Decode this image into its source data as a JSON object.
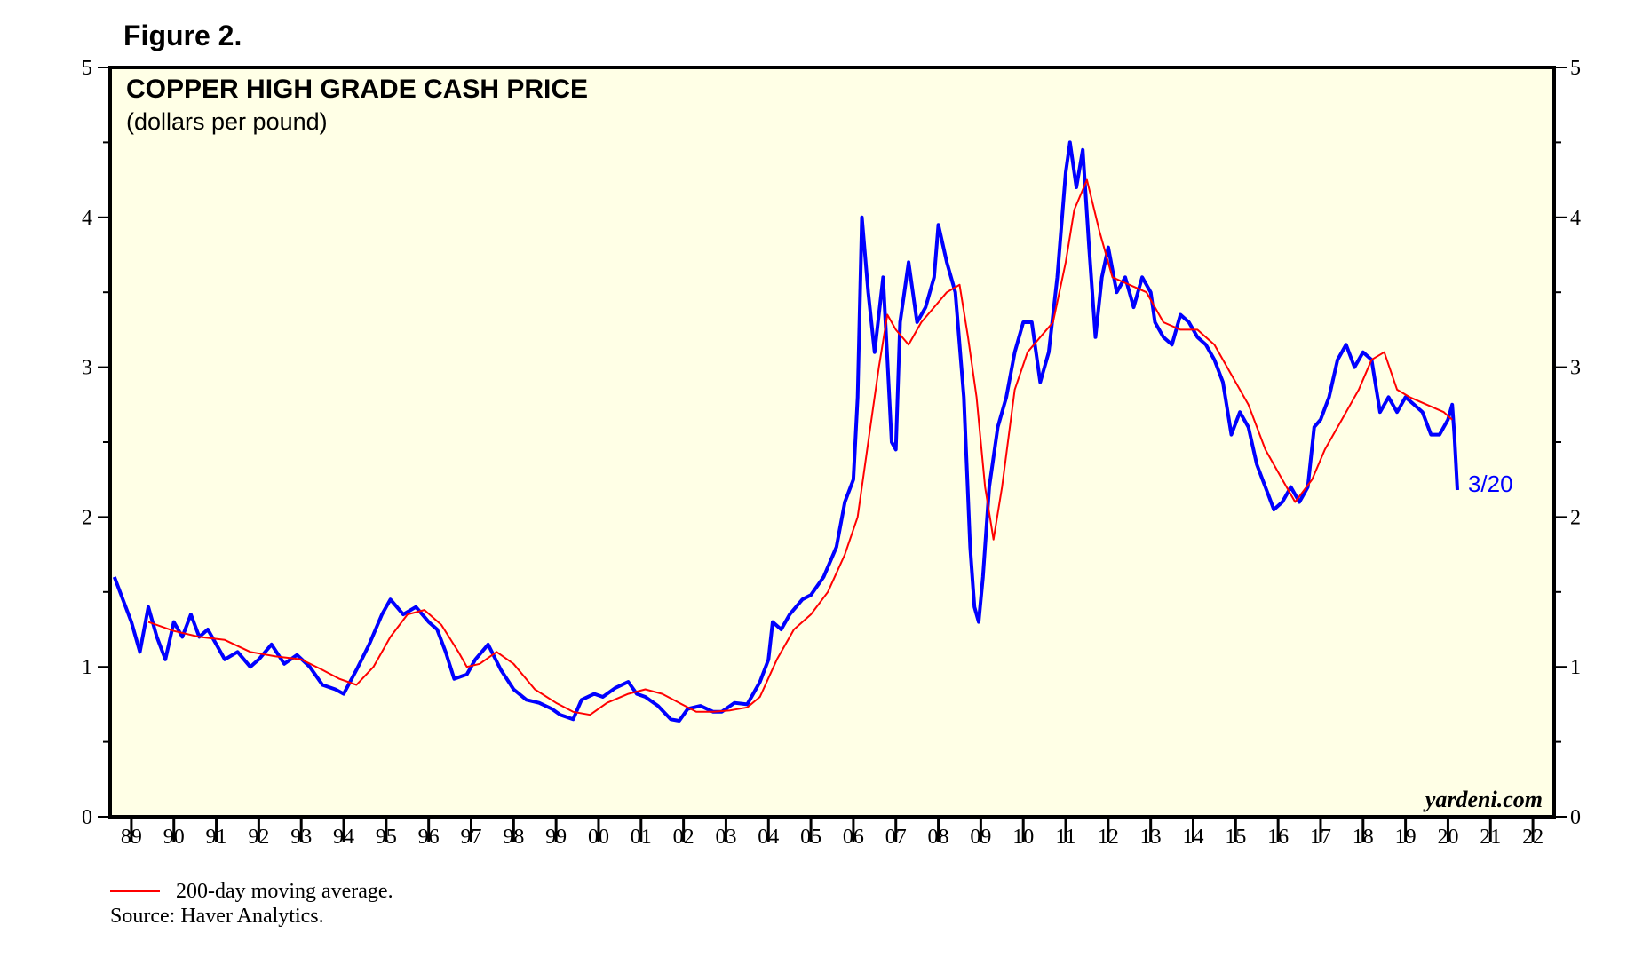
{
  "figure_label": "Figure 2.",
  "footer": {
    "legend_ma": "200-day moving average.",
    "source": "Source: Haver Analytics."
  },
  "chart_data": {
    "type": "line",
    "title": "COPPER HIGH GRADE CASH PRICE",
    "subtitle": "(dollars per pound)",
    "watermark": "yardeni.com",
    "end_annotation": "3/20",
    "ylim": [
      0,
      5
    ],
    "yticks": [
      0,
      1,
      2,
      3,
      4,
      5
    ],
    "xlim": [
      1988.5,
      2022.5
    ],
    "xtick_labels": [
      "89",
      "90",
      "91",
      "92",
      "93",
      "94",
      "95",
      "96",
      "97",
      "98",
      "99",
      "00",
      "01",
      "02",
      "03",
      "04",
      "05",
      "06",
      "07",
      "08",
      "09",
      "10",
      "11",
      "12",
      "13",
      "14",
      "15",
      "16",
      "17",
      "18",
      "19",
      "20",
      "21",
      "22"
    ],
    "grid": false,
    "background": "#ffffe6",
    "series": [
      {
        "name": "",
        "color": "#0000ff",
        "x": [
          1988.6,
          1988.8,
          1989.0,
          1989.2,
          1989.4,
          1989.6,
          1989.8,
          1990.0,
          1990.2,
          1990.4,
          1990.6,
          1990.8,
          1991.0,
          1991.2,
          1991.5,
          1991.8,
          1992.0,
          1992.3,
          1992.6,
          1992.9,
          1993.2,
          1993.5,
          1993.8,
          1994.0,
          1994.3,
          1994.6,
          1994.9,
          1995.1,
          1995.4,
          1995.7,
          1996.0,
          1996.2,
          1996.4,
          1996.6,
          1996.9,
          1997.1,
          1997.4,
          1997.7,
          1998.0,
          1998.3,
          1998.6,
          1998.9,
          1999.1,
          1999.4,
          1999.6,
          1999.9,
          2000.1,
          2000.4,
          2000.7,
          2000.9,
          2001.1,
          2001.4,
          2001.7,
          2001.9,
          2002.1,
          2002.4,
          2002.7,
          2002.9,
          2003.2,
          2003.5,
          2003.8,
          2004.0,
          2004.1,
          2004.3,
          2004.5,
          2004.8,
          2005.0,
          2005.3,
          2005.6,
          2005.8,
          2006.0,
          2006.1,
          2006.2,
          2006.35,
          2006.5,
          2006.7,
          2006.9,
          2007.0,
          2007.1,
          2007.3,
          2007.5,
          2007.7,
          2007.9,
          2008.0,
          2008.2,
          2008.4,
          2008.6,
          2008.75,
          2008.85,
          2008.95,
          2009.05,
          2009.2,
          2009.4,
          2009.6,
          2009.8,
          2010.0,
          2010.2,
          2010.4,
          2010.6,
          2010.8,
          2011.0,
          2011.1,
          2011.25,
          2011.4,
          2011.55,
          2011.7,
          2011.85,
          2012.0,
          2012.2,
          2012.4,
          2012.6,
          2012.8,
          2013.0,
          2013.1,
          2013.3,
          2013.5,
          2013.7,
          2013.9,
          2014.1,
          2014.3,
          2014.5,
          2014.7,
          2014.9,
          2015.1,
          2015.3,
          2015.5,
          2015.7,
          2015.9,
          2016.1,
          2016.3,
          2016.5,
          2016.7,
          2016.85,
          2017.0,
          2017.2,
          2017.4,
          2017.6,
          2017.8,
          2018.0,
          2018.2,
          2018.4,
          2018.6,
          2018.8,
          2019.0,
          2019.2,
          2019.4,
          2019.6,
          2019.8,
          2020.0,
          2020.1,
          2020.15,
          2020.22
        ],
        "y": [
          1.6,
          1.45,
          1.3,
          1.1,
          1.4,
          1.2,
          1.05,
          1.3,
          1.2,
          1.35,
          1.2,
          1.25,
          1.15,
          1.05,
          1.1,
          1.0,
          1.05,
          1.15,
          1.02,
          1.08,
          1.0,
          0.88,
          0.85,
          0.82,
          0.98,
          1.15,
          1.35,
          1.45,
          1.35,
          1.4,
          1.3,
          1.25,
          1.1,
          0.92,
          0.95,
          1.05,
          1.15,
          0.98,
          0.85,
          0.78,
          0.76,
          0.72,
          0.68,
          0.65,
          0.78,
          0.82,
          0.8,
          0.86,
          0.9,
          0.82,
          0.8,
          0.74,
          0.65,
          0.64,
          0.72,
          0.74,
          0.7,
          0.7,
          0.76,
          0.75,
          0.9,
          1.05,
          1.3,
          1.25,
          1.35,
          1.45,
          1.48,
          1.6,
          1.8,
          2.1,
          2.25,
          2.8,
          4.0,
          3.5,
          3.1,
          3.6,
          2.5,
          2.45,
          3.3,
          3.7,
          3.3,
          3.4,
          3.6,
          3.95,
          3.7,
          3.5,
          2.8,
          1.8,
          1.4,
          1.3,
          1.6,
          2.2,
          2.6,
          2.8,
          3.1,
          3.3,
          3.3,
          2.9,
          3.1,
          3.6,
          4.3,
          4.5,
          4.2,
          4.45,
          3.8,
          3.2,
          3.6,
          3.8,
          3.5,
          3.6,
          3.4,
          3.6,
          3.5,
          3.3,
          3.2,
          3.15,
          3.35,
          3.3,
          3.2,
          3.15,
          3.05,
          2.9,
          2.55,
          2.7,
          2.6,
          2.35,
          2.2,
          2.05,
          2.1,
          2.2,
          2.1,
          2.2,
          2.6,
          2.65,
          2.8,
          3.05,
          3.15,
          3.0,
          3.1,
          3.05,
          2.7,
          2.8,
          2.7,
          2.8,
          2.75,
          2.7,
          2.55,
          2.55,
          2.65,
          2.75,
          2.55,
          2.18
        ]
      },
      {
        "name": "200-day moving average.",
        "color": "#ff0000",
        "x": [
          1989.4,
          1990.0,
          1990.6,
          1991.2,
          1991.8,
          1992.4,
          1993.0,
          1993.5,
          1993.9,
          1994.3,
          1994.7,
          1995.1,
          1995.5,
          1995.9,
          1996.3,
          1996.7,
          1996.9,
          1997.2,
          1997.6,
          1998.0,
          1998.5,
          1999.0,
          1999.4,
          1999.8,
          2000.2,
          2000.7,
          2001.1,
          2001.5,
          2001.9,
          2002.3,
          2002.7,
          2003.1,
          2003.5,
          2003.8,
          2004.2,
          2004.6,
          2005.0,
          2005.4,
          2005.8,
          2006.1,
          2006.4,
          2006.6,
          2006.8,
          2007.0,
          2007.3,
          2007.6,
          2007.9,
          2008.2,
          2008.5,
          2008.7,
          2008.9,
          2009.1,
          2009.3,
          2009.5,
          2009.8,
          2010.1,
          2010.4,
          2010.7,
          2011.0,
          2011.2,
          2011.5,
          2011.8,
          2012.1,
          2012.5,
          2012.9,
          2013.3,
          2013.7,
          2014.1,
          2014.5,
          2014.9,
          2015.3,
          2015.7,
          2016.1,
          2016.4,
          2016.8,
          2017.1,
          2017.5,
          2017.9,
          2018.2,
          2018.5,
          2018.8,
          2019.1,
          2019.5,
          2019.9,
          2020.1
        ],
        "y": [
          1.3,
          1.24,
          1.2,
          1.18,
          1.1,
          1.07,
          1.05,
          0.98,
          0.92,
          0.88,
          1.0,
          1.2,
          1.35,
          1.38,
          1.28,
          1.1,
          1.0,
          1.02,
          1.1,
          1.02,
          0.85,
          0.76,
          0.7,
          0.68,
          0.76,
          0.82,
          0.85,
          0.82,
          0.76,
          0.7,
          0.7,
          0.71,
          0.73,
          0.8,
          1.05,
          1.25,
          1.35,
          1.5,
          1.75,
          2.0,
          2.6,
          3.0,
          3.35,
          3.25,
          3.15,
          3.3,
          3.4,
          3.5,
          3.55,
          3.2,
          2.8,
          2.2,
          1.85,
          2.2,
          2.85,
          3.1,
          3.2,
          3.3,
          3.7,
          4.05,
          4.25,
          3.9,
          3.6,
          3.55,
          3.5,
          3.3,
          3.25,
          3.25,
          3.15,
          2.95,
          2.75,
          2.45,
          2.25,
          2.1,
          2.25,
          2.45,
          2.65,
          2.85,
          3.05,
          3.1,
          2.85,
          2.8,
          2.75,
          2.7,
          2.65
        ]
      }
    ]
  }
}
